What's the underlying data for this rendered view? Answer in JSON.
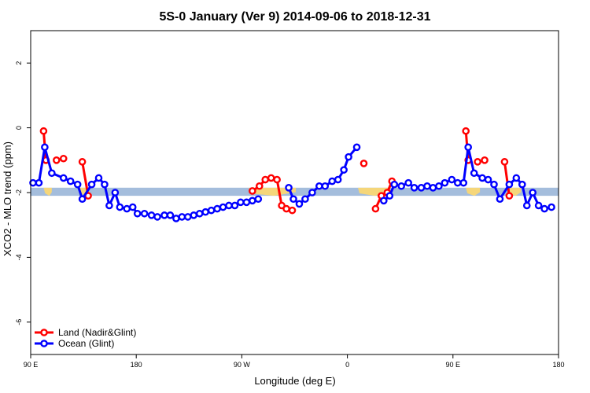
{
  "chart_data": {
    "type": "line",
    "title": "5S-0 January (Ver 9)   2014-09-06 to 2018-12-31",
    "xlabel": "Longitude (deg E)",
    "ylabel": "XCO2 - MLO trend (ppm)",
    "xlim": [
      90,
      540
    ],
    "ylim": [
      -7,
      3
    ],
    "x_ticks": [
      {
        "value": 90,
        "label": "90 E"
      },
      {
        "value": 180,
        "label": "180"
      },
      {
        "value": 270,
        "label": "90 W"
      },
      {
        "value": 360,
        "label": "0"
      },
      {
        "value": 450,
        "label": "90 E"
      },
      {
        "value": 540,
        "label": "180"
      }
    ],
    "y_ticks": [
      {
        "value": -6,
        "label": "-6"
      },
      {
        "value": -4,
        "label": "-4"
      },
      {
        "value": -2,
        "label": "-2"
      },
      {
        "value": 0,
        "label": "0"
      },
      {
        "value": 2,
        "label": "2"
      }
    ],
    "band": {
      "y_low": -2.1,
      "y_high": -1.85,
      "color": "#a4bddc",
      "land_color": "#f5d67a"
    },
    "land_regions": [
      [
        101,
        108
      ],
      [
        131,
        140
      ],
      [
        276,
        316
      ],
      [
        369,
        395
      ],
      [
        461,
        473
      ],
      [
        496,
        508
      ]
    ],
    "legend": {
      "position": "bottom-left"
    },
    "series": [
      {
        "name": "Land (Nadir&Glint)",
        "color": "#ff0000",
        "segments": [
          [
            [
              101,
              -0.1
            ],
            [
              103,
              -1.0
            ]
          ],
          [
            [
              112,
              -1.0
            ],
            [
              118,
              -0.95
            ]
          ],
          [
            [
              134,
              -1.05
            ],
            [
              139,
              -2.1
            ]
          ],
          [
            [
              279,
              -1.95
            ],
            [
              285,
              -1.8
            ],
            [
              290,
              -1.6
            ],
            [
              295,
              -1.55
            ],
            [
              300,
              -1.6
            ],
            [
              304,
              -2.4
            ],
            [
              308,
              -2.5
            ],
            [
              313,
              -2.55
            ]
          ],
          [
            [
              374,
              -1.1
            ]
          ],
          [
            [
              384,
              -2.5
            ],
            [
              389,
              -2.1
            ],
            [
              394,
              -2.0
            ],
            [
              398,
              -1.65
            ]
          ],
          [
            [
              461,
              -0.1
            ],
            [
              463,
              -1.0
            ]
          ],
          [
            [
              471,
              -1.05
            ],
            [
              477,
              -1.0
            ]
          ],
          [
            [
              494,
              -1.05
            ],
            [
              498,
              -2.1
            ]
          ]
        ]
      },
      {
        "name": "Ocean (Glint)",
        "color": "#0000ff",
        "segments": [
          [
            [
              92,
              -1.7
            ],
            [
              97,
              -1.7
            ],
            [
              102,
              -0.6
            ],
            [
              108,
              -1.4
            ],
            [
              118,
              -1.55
            ],
            [
              124,
              -1.65
            ],
            [
              130,
              -1.75
            ],
            [
              134,
              -2.2
            ],
            [
              142,
              -1.75
            ],
            [
              148,
              -1.55
            ],
            [
              153,
              -1.75
            ],
            [
              157,
              -2.4
            ],
            [
              162,
              -2.0
            ],
            [
              166,
              -2.45
            ],
            [
              172,
              -2.5
            ],
            [
              177,
              -2.45
            ],
            [
              181,
              -2.65
            ],
            [
              187,
              -2.65
            ],
            [
              193,
              -2.7
            ],
            [
              198,
              -2.75
            ],
            [
              204,
              -2.7
            ],
            [
              209,
              -2.7
            ],
            [
              214,
              -2.8
            ],
            [
              219,
              -2.75
            ],
            [
              224,
              -2.75
            ],
            [
              229,
              -2.7
            ],
            [
              234,
              -2.65
            ],
            [
              239,
              -2.6
            ],
            [
              244,
              -2.55
            ],
            [
              249,
              -2.5
            ],
            [
              254,
              -2.45
            ],
            [
              259,
              -2.4
            ],
            [
              264,
              -2.4
            ],
            [
              269,
              -2.3
            ],
            [
              274,
              -2.3
            ],
            [
              279,
              -2.25
            ],
            [
              284,
              -2.2
            ]
          ],
          [
            [
              310,
              -1.85
            ],
            [
              314,
              -2.2
            ],
            [
              319,
              -2.35
            ],
            [
              324,
              -2.2
            ],
            [
              330,
              -2.0
            ],
            [
              336,
              -1.8
            ],
            [
              341,
              -1.8
            ],
            [
              347,
              -1.65
            ],
            [
              352,
              -1.6
            ],
            [
              357,
              -1.3
            ],
            [
              361,
              -0.9
            ],
            [
              368,
              -0.6
            ]
          ],
          [
            [
              391,
              -2.25
            ],
            [
              396,
              -2.1
            ],
            [
              400,
              -1.75
            ],
            [
              406,
              -1.8
            ],
            [
              412,
              -1.7
            ],
            [
              417,
              -1.85
            ],
            [
              423,
              -1.85
            ],
            [
              428,
              -1.8
            ],
            [
              433,
              -1.85
            ],
            [
              438,
              -1.8
            ],
            [
              443,
              -1.7
            ],
            [
              449,
              -1.6
            ],
            [
              454,
              -1.7
            ],
            [
              459,
              -1.7
            ],
            [
              463,
              -0.6
            ],
            [
              468,
              -1.4
            ],
            [
              475,
              -1.55
            ],
            [
              480,
              -1.6
            ],
            [
              485,
              -1.75
            ],
            [
              490,
              -2.2
            ],
            [
              498,
              -1.75
            ],
            [
              504,
              -1.55
            ],
            [
              509,
              -1.75
            ],
            [
              513,
              -2.4
            ],
            [
              518,
              -2.0
            ],
            [
              523,
              -2.4
            ],
            [
              528,
              -2.5
            ],
            [
              534,
              -2.45
            ]
          ]
        ]
      }
    ]
  }
}
